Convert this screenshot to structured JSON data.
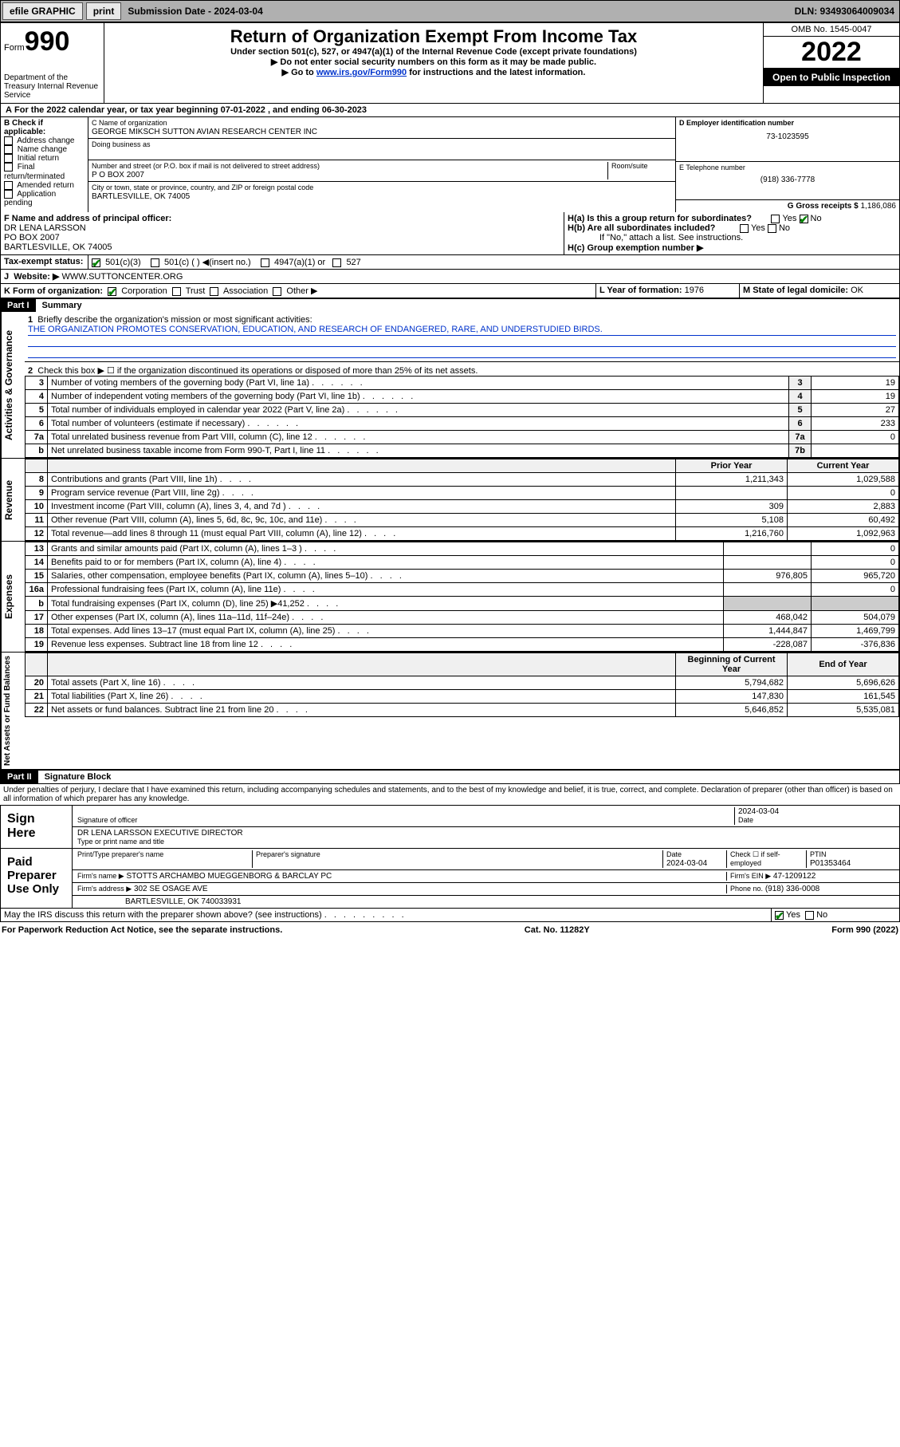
{
  "topbar": {
    "efile": "efile GRAPHIC",
    "print": "print",
    "subdate_lbl": "Submission Date - 2024-03-04",
    "dln": "DLN: 93493064009034"
  },
  "header": {
    "form": "Form",
    "num": "990",
    "dept": "Department of the Treasury\nInternal Revenue Service",
    "title": "Return of Organization Exempt From Income Tax",
    "sub1": "Under section 501(c), 527, or 4947(a)(1) of the Internal Revenue Code (except private foundations)",
    "sub2": "▶ Do not enter social security numbers on this form as it may be made public.",
    "sub3_pre": "▶ Go to ",
    "sub3_link": "www.irs.gov/Form990",
    "sub3_post": " for instructions and the latest information.",
    "omb": "OMB No. 1545-0047",
    "year": "2022",
    "inspection": "Open to Public Inspection"
  },
  "A": {
    "text": "For the 2022 calendar year, or tax year beginning 07-01-2022   , and ending 06-30-2023"
  },
  "B": {
    "label": "B Check if applicable:",
    "items": [
      "Address change",
      "Name change",
      "Initial return",
      "Final return/terminated",
      "Amended return",
      "Application pending"
    ]
  },
  "C": {
    "name_lbl": "C Name of organization",
    "name": "GEORGE MIKSCH SUTTON AVIAN RESEARCH CENTER INC",
    "dba_lbl": "Doing business as",
    "dba": "",
    "addr_lbl": "Number and street (or P.O. box if mail is not delivered to street address)",
    "room_lbl": "Room/suite",
    "addr": "P O BOX 2007",
    "city_lbl": "City or town, state or province, country, and ZIP or foreign postal code",
    "city": "BARTLESVILLE, OK  74005"
  },
  "D": {
    "lbl": "D Employer identification number",
    "val": "73-1023595"
  },
  "E": {
    "lbl": "E Telephone number",
    "val": "(918) 336-7778"
  },
  "G": {
    "lbl": "G Gross receipts $",
    "val": "1,186,086"
  },
  "F": {
    "lbl": "F Name and address of principal officer:",
    "name": "DR LENA LARSSON",
    "addr1": "PO BOX 2007",
    "addr2": "BARTLESVILLE, OK  74005"
  },
  "H": {
    "a": "H(a)  Is this a group return for subordinates?",
    "b": "H(b)  Are all subordinates included?",
    "b_note": "If \"No,\" attach a list. See instructions.",
    "c": "H(c)  Group exemption number ▶",
    "yes": "Yes",
    "no": "No"
  },
  "I": {
    "lbl": "Tax-exempt status:",
    "opts": [
      "501(c)(3)",
      "501(c) (  ) ◀(insert no.)",
      "4947(a)(1) or",
      "527"
    ]
  },
  "J": {
    "lbl": "Website: ▶",
    "val": "WWW.SUTTONCENTER.ORG"
  },
  "K": {
    "lbl": "K Form of organization:",
    "opts": [
      "Corporation",
      "Trust",
      "Association",
      "Other ▶"
    ]
  },
  "L": {
    "lbl": "L Year of formation:",
    "val": "1976"
  },
  "M": {
    "lbl": "M State of legal domicile:",
    "val": "OK"
  },
  "partI": {
    "hdr": "Part I",
    "title": "Summary"
  },
  "summary": {
    "line1_lbl": "Briefly describe the organization's mission or most significant activities:",
    "line1_val": "THE ORGANIZATION PROMOTES CONSERVATION, EDUCATION, AND RESEARCH OF ENDANGERED, RARE, AND UNDERSTUDIED BIRDS.",
    "line2": "Check this box ▶ ☐  if the organization discontinued its operations or disposed of more than 25% of its net assets.",
    "rows_gov": [
      {
        "n": "3",
        "lbl": "Number of voting members of the governing body (Part VI, line 1a)",
        "box": "3",
        "val": "19"
      },
      {
        "n": "4",
        "lbl": "Number of independent voting members of the governing body (Part VI, line 1b)",
        "box": "4",
        "val": "19"
      },
      {
        "n": "5",
        "lbl": "Total number of individuals employed in calendar year 2022 (Part V, line 2a)",
        "box": "5",
        "val": "27"
      },
      {
        "n": "6",
        "lbl": "Total number of volunteers (estimate if necessary)",
        "box": "6",
        "val": "233"
      },
      {
        "n": "7a",
        "lbl": "Total unrelated business revenue from Part VIII, column (C), line 12",
        "box": "7a",
        "val": "0"
      },
      {
        "n": "b",
        "lbl": "Net unrelated business taxable income from Form 990-T, Part I, line 11",
        "box": "7b",
        "val": ""
      }
    ],
    "hdr_prior": "Prior Year",
    "hdr_curr": "Current Year",
    "rows_rev": [
      {
        "n": "8",
        "lbl": "Contributions and grants (Part VIII, line 1h)",
        "prior": "1,211,343",
        "curr": "1,029,588"
      },
      {
        "n": "9",
        "lbl": "Program service revenue (Part VIII, line 2g)",
        "prior": "",
        "curr": "0"
      },
      {
        "n": "10",
        "lbl": "Investment income (Part VIII, column (A), lines 3, 4, and 7d )",
        "prior": "309",
        "curr": "2,883"
      },
      {
        "n": "11",
        "lbl": "Other revenue (Part VIII, column (A), lines 5, 6d, 8c, 9c, 10c, and 11e)",
        "prior": "5,108",
        "curr": "60,492"
      },
      {
        "n": "12",
        "lbl": "Total revenue—add lines 8 through 11 (must equal Part VIII, column (A), line 12)",
        "prior": "1,216,760",
        "curr": "1,092,963"
      }
    ],
    "rows_exp": [
      {
        "n": "13",
        "lbl": "Grants and similar amounts paid (Part IX, column (A), lines 1–3 )",
        "prior": "",
        "curr": "0"
      },
      {
        "n": "14",
        "lbl": "Benefits paid to or for members (Part IX, column (A), line 4)",
        "prior": "",
        "curr": "0"
      },
      {
        "n": "15",
        "lbl": "Salaries, other compensation, employee benefits (Part IX, column (A), lines 5–10)",
        "prior": "976,805",
        "curr": "965,720"
      },
      {
        "n": "16a",
        "lbl": "Professional fundraising fees (Part IX, column (A), line 11e)",
        "prior": "",
        "curr": "0"
      },
      {
        "n": "b",
        "lbl": "Total fundraising expenses (Part IX, column (D), line 25) ▶41,252",
        "prior": "—",
        "curr": "—"
      },
      {
        "n": "17",
        "lbl": "Other expenses (Part IX, column (A), lines 11a–11d, 11f–24e)",
        "prior": "468,042",
        "curr": "504,079"
      },
      {
        "n": "18",
        "lbl": "Total expenses. Add lines 13–17 (must equal Part IX, column (A), line 25)",
        "prior": "1,444,847",
        "curr": "1,469,799"
      },
      {
        "n": "19",
        "lbl": "Revenue less expenses. Subtract line 18 from line 12",
        "prior": "-228,087",
        "curr": "-376,836"
      }
    ],
    "hdr_begin": "Beginning of Current Year",
    "hdr_end": "End of Year",
    "rows_net": [
      {
        "n": "20",
        "lbl": "Total assets (Part X, line 16)",
        "prior": "5,794,682",
        "curr": "5,696,626"
      },
      {
        "n": "21",
        "lbl": "Total liabilities (Part X, line 26)",
        "prior": "147,830",
        "curr": "161,545"
      },
      {
        "n": "22",
        "lbl": "Net assets or fund balances. Subtract line 21 from line 20",
        "prior": "5,646,852",
        "curr": "5,535,081"
      }
    ],
    "vert_gov": "Activities & Governance",
    "vert_rev": "Revenue",
    "vert_exp": "Expenses",
    "vert_net": "Net Assets or Fund Balances"
  },
  "partII": {
    "hdr": "Part II",
    "title": "Signature Block"
  },
  "sig": {
    "penalty": "Under penalties of perjury, I declare that I have examined this return, including accompanying schedules and statements, and to the best of my knowledge and belief, it is true, correct, and complete. Declaration of preparer (other than officer) is based on all information of which preparer has any knowledge.",
    "sign_here": "Sign Here",
    "officer_sig": "Signature of officer",
    "date": "Date",
    "date_val": "2024-03-04",
    "officer_name": "DR LENA LARSSON EXECUTIVE DIRECTOR",
    "officer_name_lbl": "Type or print name and title",
    "paid": "Paid Preparer Use Only",
    "prep_name_lbl": "Print/Type preparer's name",
    "prep_sig_lbl": "Preparer's signature",
    "prep_date_lbl": "Date",
    "prep_date": "2024-03-04",
    "check_lbl": "Check ☐ if self-employed",
    "ptin_lbl": "PTIN",
    "ptin": "P01353464",
    "firm_name_lbl": "Firm's name    ▶",
    "firm_name": "STOTTS ARCHAMBO MUEGGENBORG & BARCLAY PC",
    "firm_ein_lbl": "Firm's EIN ▶",
    "firm_ein": "47-1209122",
    "firm_addr_lbl": "Firm's address ▶",
    "firm_addr": "302 SE OSAGE AVE",
    "firm_city": "BARTLESVILLE, OK  740033931",
    "phone_lbl": "Phone no.",
    "phone": "(918) 336-0008",
    "discuss": "May the IRS discuss this return with the preparer shown above? (see instructions)",
    "yes": "Yes",
    "no": "No"
  },
  "footer": {
    "left": "For Paperwork Reduction Act Notice, see the separate instructions.",
    "mid": "Cat. No. 11282Y",
    "right": "Form 990 (2022)"
  }
}
